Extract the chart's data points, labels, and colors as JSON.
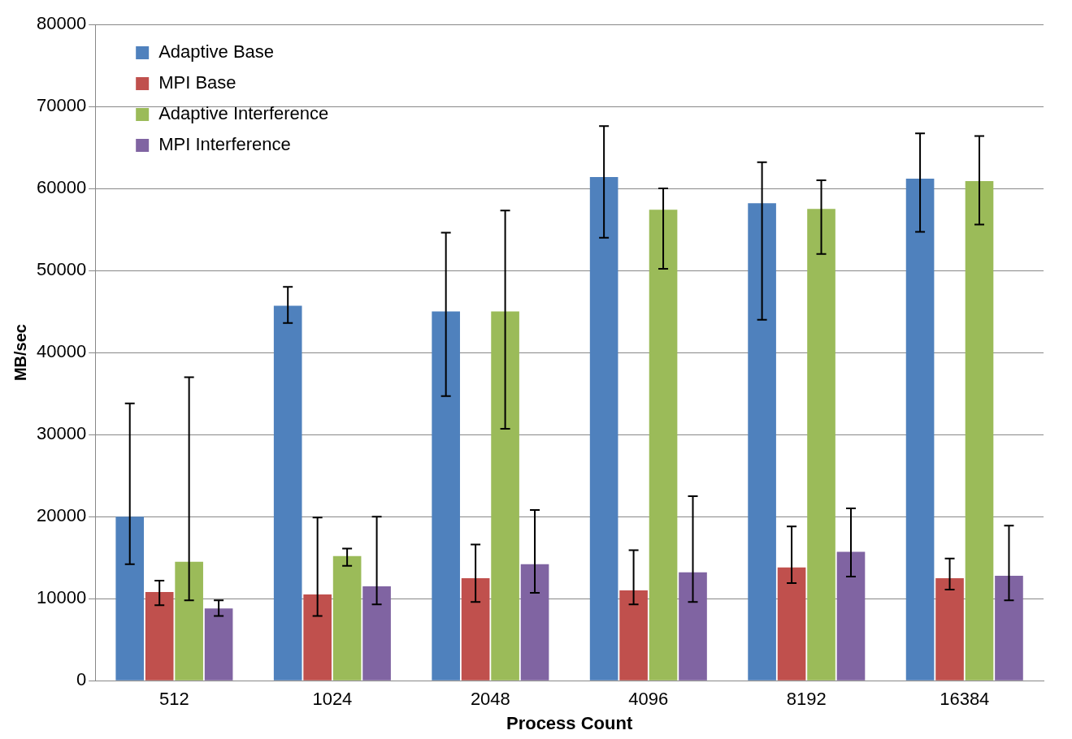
{
  "chart_data": {
    "type": "bar",
    "xlabel": "Process Count",
    "ylabel": "MB/sec",
    "categories": [
      "512",
      "1024",
      "2048",
      "4096",
      "8192",
      "16384"
    ],
    "series": [
      {
        "name": "Adaptive Base",
        "color": "#4f81bd",
        "values": [
          20000,
          45700,
          45000,
          61400,
          58200,
          61200
        ],
        "errors": [
          [
            14200,
            33800
          ],
          [
            43600,
            48000
          ],
          [
            34700,
            54600
          ],
          [
            54000,
            67600
          ],
          [
            44000,
            63200
          ],
          [
            54700,
            66700
          ]
        ]
      },
      {
        "name": "MPI Base",
        "color": "#c0504d",
        "values": [
          10800,
          10500,
          12500,
          11000,
          13800,
          12500
        ],
        "errors": [
          [
            9200,
            12200
          ],
          [
            7900,
            19900
          ],
          [
            9600,
            16600
          ],
          [
            9300,
            15900
          ],
          [
            11900,
            18800
          ],
          [
            11100,
            14900
          ]
        ]
      },
      {
        "name": "Adaptive Interference",
        "color": "#9bbb59",
        "values": [
          14500,
          15200,
          45000,
          57400,
          57500,
          60900
        ],
        "errors": [
          [
            9800,
            37000
          ],
          [
            14000,
            16100
          ],
          [
            30700,
            57300
          ],
          [
            50200,
            60000
          ],
          [
            52000,
            61000
          ],
          [
            55600,
            66400
          ]
        ]
      },
      {
        "name": "MPI Interference",
        "color": "#8064a2",
        "values": [
          8800,
          11500,
          14200,
          13200,
          15700,
          12800
        ],
        "errors": [
          [
            7900,
            9800
          ],
          [
            9300,
            20000
          ],
          [
            10700,
            20800
          ],
          [
            9600,
            22500
          ],
          [
            12700,
            21000
          ],
          [
            9800,
            18900
          ]
        ]
      }
    ],
    "ylim": [
      0,
      80000
    ],
    "yticks": [
      0,
      10000,
      20000,
      30000,
      40000,
      50000,
      60000,
      70000,
      80000
    ],
    "grid": "y",
    "legend": "top left"
  }
}
